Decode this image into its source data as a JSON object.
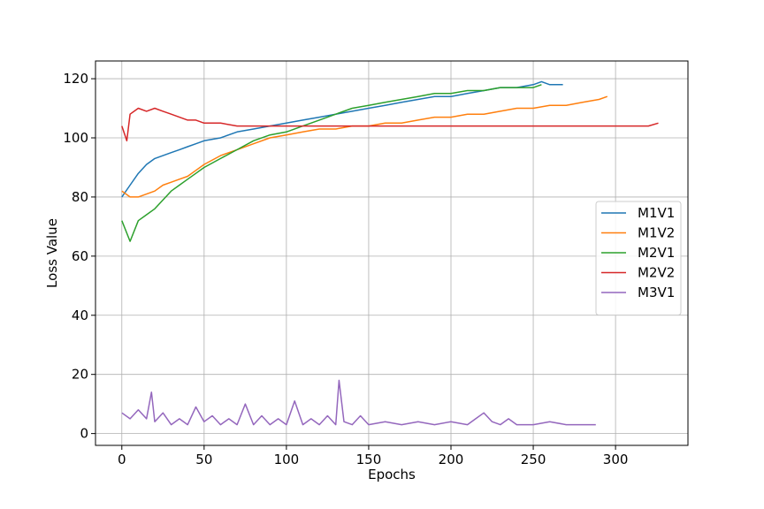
{
  "chart_data": {
    "type": "line",
    "xlabel": "Epochs",
    "ylabel": "Loss Value",
    "xlim": [
      -16,
      344
    ],
    "ylim": [
      -4,
      126
    ],
    "xticks": [
      0,
      50,
      100,
      150,
      200,
      250,
      300
    ],
    "yticks": [
      0,
      20,
      40,
      60,
      80,
      100,
      120
    ],
    "grid": true,
    "legend_position": "center-right",
    "series": [
      {
        "name": "M1V1",
        "color": "#1f77b4",
        "x": [
          0,
          5,
          10,
          15,
          20,
          25,
          30,
          35,
          40,
          45,
          50,
          60,
          70,
          80,
          90,
          100,
          110,
          120,
          130,
          140,
          150,
          160,
          170,
          180,
          190,
          200,
          210,
          220,
          230,
          240,
          250,
          255,
          260,
          265,
          268
        ],
        "y": [
          80,
          84,
          88,
          91,
          93,
          94,
          95,
          96,
          97,
          98,
          99,
          100,
          102,
          103,
          104,
          105,
          106,
          107,
          108,
          109,
          110,
          111,
          112,
          113,
          114,
          114,
          115,
          116,
          117,
          117,
          118,
          119,
          118,
          118,
          118
        ]
      },
      {
        "name": "M1V2",
        "color": "#ff7f0e",
        "x": [
          0,
          5,
          10,
          15,
          20,
          25,
          30,
          35,
          40,
          45,
          50,
          60,
          70,
          80,
          90,
          100,
          110,
          120,
          130,
          140,
          150,
          160,
          170,
          180,
          190,
          200,
          210,
          220,
          230,
          240,
          250,
          260,
          270,
          280,
          290,
          295
        ],
        "y": [
          82,
          80,
          80,
          81,
          82,
          84,
          85,
          86,
          87,
          89,
          91,
          94,
          96,
          98,
          100,
          101,
          102,
          103,
          103,
          104,
          104,
          105,
          105,
          106,
          107,
          107,
          108,
          108,
          109,
          110,
          110,
          111,
          111,
          112,
          113,
          114
        ]
      },
      {
        "name": "M2V1",
        "color": "#2ca02c",
        "x": [
          0,
          5,
          10,
          15,
          20,
          25,
          30,
          35,
          40,
          45,
          50,
          60,
          70,
          80,
          90,
          100,
          110,
          120,
          130,
          140,
          150,
          160,
          170,
          180,
          190,
          200,
          210,
          220,
          230,
          240,
          250,
          255
        ],
        "y": [
          72,
          65,
          72,
          74,
          76,
          79,
          82,
          84,
          86,
          88,
          90,
          93,
          96,
          99,
          101,
          102,
          104,
          106,
          108,
          110,
          111,
          112,
          113,
          114,
          115,
          115,
          116,
          116,
          117,
          117,
          117,
          118
        ]
      },
      {
        "name": "M2V2",
        "color": "#d62728",
        "x": [
          0,
          3,
          5,
          10,
          15,
          20,
          25,
          30,
          35,
          40,
          45,
          50,
          60,
          70,
          80,
          90,
          100,
          110,
          120,
          130,
          140,
          150,
          160,
          170,
          180,
          190,
          200,
          210,
          220,
          230,
          240,
          250,
          260,
          270,
          280,
          290,
          300,
          310,
          320,
          326
        ],
        "y": [
          104,
          99,
          108,
          110,
          109,
          110,
          109,
          108,
          107,
          106,
          106,
          105,
          105,
          104,
          104,
          104,
          104,
          104,
          104,
          104,
          104,
          104,
          104,
          104,
          104,
          104,
          104,
          104,
          104,
          104,
          104,
          104,
          104,
          104,
          104,
          104,
          104,
          104,
          104,
          105
        ]
      },
      {
        "name": "M3V1",
        "color": "#9467bd",
        "x": [
          0,
          5,
          10,
          15,
          18,
          20,
          25,
          30,
          35,
          40,
          45,
          50,
          55,
          60,
          65,
          70,
          75,
          80,
          85,
          90,
          95,
          100,
          105,
          110,
          115,
          120,
          125,
          130,
          132,
          135,
          140,
          145,
          150,
          160,
          170,
          180,
          190,
          200,
          210,
          215,
          220,
          225,
          230,
          235,
          240,
          250,
          260,
          270,
          280,
          288
        ],
        "y": [
          7,
          5,
          8,
          5,
          14,
          4,
          7,
          3,
          5,
          3,
          9,
          4,
          6,
          3,
          5,
          3,
          10,
          3,
          6,
          3,
          5,
          3,
          11,
          3,
          5,
          3,
          6,
          3,
          18,
          4,
          3,
          6,
          3,
          4,
          3,
          4,
          3,
          4,
          3,
          5,
          7,
          4,
          3,
          5,
          3,
          3,
          4,
          3,
          3,
          3
        ]
      }
    ]
  }
}
